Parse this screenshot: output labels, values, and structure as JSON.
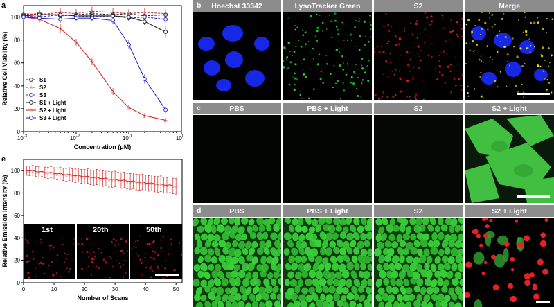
{
  "panel_a": {
    "letter": "a",
    "chart_data": {
      "type": "line",
      "xscale": "log",
      "xlabel": "Concentration (μM)",
      "ylabel": "Relative Cell Viability (%)",
      "xlim": [
        0.001,
        1
      ],
      "ylim": [
        0,
        110
      ],
      "yticks": [
        0,
        20,
        40,
        60,
        80,
        100
      ],
      "xtick_labels": [
        {
          "base": "10",
          "exp": "-3",
          "value": 0.001
        },
        {
          "base": "10",
          "exp": "-2",
          "value": 0.01
        },
        {
          "base": "10",
          "exp": "-1",
          "value": 0.1
        },
        {
          "base": "10",
          "exp": "0",
          "value": 1
        }
      ],
      "legend_position": "center-left",
      "x": [
        0.001,
        0.002,
        0.005,
        0.01,
        0.02,
        0.05,
        0.1,
        0.2,
        0.5
      ],
      "series": [
        {
          "name": "S1",
          "color": "#222222",
          "dash": "3,2",
          "marker": "circle",
          "values": [
            102,
            103,
            101,
            102,
            103,
            102,
            103,
            101,
            102
          ],
          "err": [
            3,
            3,
            3,
            3,
            3,
            3,
            3,
            3,
            3
          ]
        },
        {
          "name": "S2",
          "color": "#d22b2b",
          "dash": "3,2",
          "marker": "star",
          "values": [
            103,
            102,
            104,
            103,
            105,
            104,
            103,
            104,
            103
          ],
          "err": [
            4,
            4,
            4,
            4,
            4,
            4,
            4,
            4,
            4
          ]
        },
        {
          "name": "S3",
          "color": "#2a2ad0",
          "dash": "3,2",
          "marker": "circle",
          "values": [
            101,
            100,
            102,
            101,
            100,
            101,
            99,
            100,
            98
          ],
          "err": [
            3,
            3,
            3,
            3,
            3,
            3,
            3,
            3,
            3
          ]
        },
        {
          "name": "S1 + Light",
          "color": "#222222",
          "dash": "",
          "marker": "circle",
          "values": [
            101,
            102,
            102,
            101,
            101,
            101,
            100,
            96,
            87
          ],
          "err": [
            3,
            3,
            3,
            3,
            3,
            3,
            3,
            3,
            5
          ]
        },
        {
          "name": "S2 + Light",
          "color": "#d22b2b",
          "dash": "",
          "marker": "star",
          "values": [
            100,
            98,
            90,
            78,
            61,
            35,
            21,
            14,
            10
          ],
          "err": [
            3,
            3,
            4,
            3,
            3,
            3,
            2,
            2,
            2
          ]
        },
        {
          "name": "S3 + Light",
          "color": "#2a2ad0",
          "dash": "",
          "marker": "circle",
          "values": [
            100,
            99,
            98,
            99,
            99,
            97,
            76,
            46,
            19
          ],
          "err": [
            3,
            3,
            3,
            3,
            3,
            3,
            4,
            4,
            3
          ]
        }
      ]
    }
  },
  "panel_b": {
    "letter": "b",
    "labels": [
      "Hoechst 33342",
      "LysoTracker Green",
      "S2",
      "Merge"
    ]
  },
  "panel_c": {
    "letter": "c",
    "labels": [
      "PBS",
      "PBS + Light",
      "S2",
      "S2 + Light"
    ]
  },
  "panel_d": {
    "letter": "d",
    "labels": [
      "PBS",
      "PBS + Light",
      "S2",
      "S2 + Light"
    ]
  },
  "panel_e": {
    "letter": "e",
    "inset_labels": [
      "1st",
      "20th",
      "50th"
    ],
    "chart_data": {
      "type": "line",
      "xlabel": "Number of Scans",
      "ylabel": "Relative Emission Intensity (%)",
      "xlim": [
        0,
        52
      ],
      "ylim": [
        0,
        110
      ],
      "xticks": [
        0,
        10,
        20,
        30,
        40,
        50
      ],
      "yticks": [
        0,
        20,
        40,
        60,
        80,
        100
      ],
      "series": [
        {
          "color": "#d22b2b",
          "start": 100,
          "end": 86,
          "n": 50
        }
      ]
    }
  }
}
